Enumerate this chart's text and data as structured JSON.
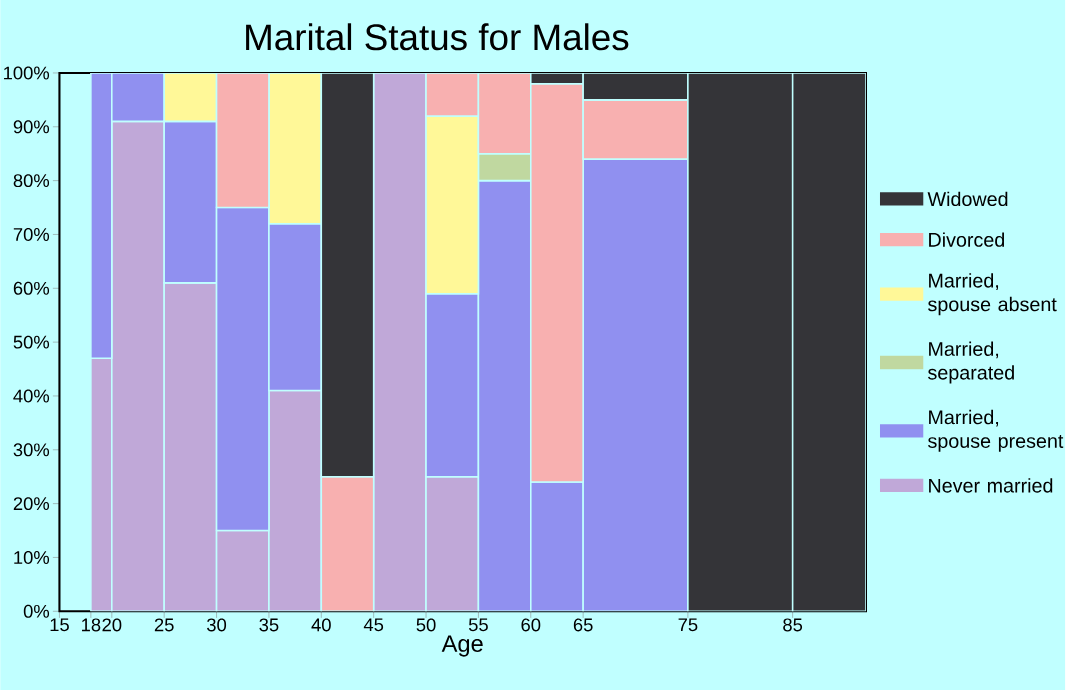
{
  "chart_data": {
    "type": "bar",
    "title": "Marital Status for Males",
    "xlabel": "Age",
    "stacked": true,
    "legend": "right",
    "x": [
      19,
      22.5,
      27.5,
      32.5,
      37.5,
      42.5,
      47.5,
      52.5,
      57.5,
      62.5,
      70,
      80,
      88.5
    ],
    "xlim": [
      15,
      92
    ],
    "xticks": [
      15,
      18,
      20,
      25,
      30,
      35,
      40,
      45,
      50,
      55,
      60,
      65,
      75,
      85
    ],
    "ylim": [
      0,
      100
    ],
    "yticks": [
      {
        "value": 0,
        "label": "0%"
      },
      {
        "value": 10,
        "label": "10%"
      },
      {
        "value": 20,
        "label": "20%"
      },
      {
        "value": 30,
        "label": "30%"
      },
      {
        "value": 40,
        "label": "40%"
      },
      {
        "value": 50,
        "label": "50%"
      },
      {
        "value": 60,
        "label": "60%"
      },
      {
        "value": 70,
        "label": "70%"
      },
      {
        "value": 80,
        "label": "80%"
      },
      {
        "value": 90,
        "label": "90%"
      },
      {
        "value": 100,
        "label": "100%"
      }
    ],
    "series": [
      {
        "name": "Never married",
        "color": "#c0a8d8",
        "values": [
          47,
          91,
          61,
          15,
          41,
          0,
          100,
          25,
          0,
          0,
          0,
          0,
          0
        ]
      },
      {
        "name": "Married, spouse present",
        "color": "#9090f0",
        "values": [
          53,
          9,
          30,
          60,
          31,
          0,
          0,
          34,
          80,
          24,
          84,
          0,
          0
        ]
      },
      {
        "name": "Married, separated",
        "color": "#c0d8a0",
        "values": [
          0,
          0,
          0,
          0,
          0,
          0,
          0,
          0,
          5,
          0,
          0,
          0,
          0
        ]
      },
      {
        "name": "Married, spouse absent",
        "color": "#fff898",
        "values": [
          0,
          0,
          9,
          0,
          28,
          0,
          0,
          33,
          0,
          0,
          0,
          0,
          0
        ]
      },
      {
        "name": "Divorced",
        "color": "#f8b0b0",
        "values": [
          0,
          0,
          0,
          25,
          0,
          25,
          0,
          8,
          15,
          74,
          11,
          0,
          0
        ]
      },
      {
        "name": "Widowed",
        "color": "#343438",
        "values": [
          0,
          0,
          0,
          0,
          0,
          75,
          0,
          0,
          0,
          2,
          5,
          100,
          100
        ]
      }
    ]
  }
}
